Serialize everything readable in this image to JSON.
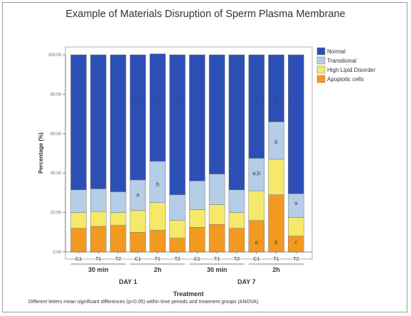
{
  "chart_data": {
    "type": "bar",
    "stacked": true,
    "title": "Example of Materials Disruption of Sperm Plasma Membrane",
    "xlabel": "Treatment",
    "ylabel": "Percentage (%)",
    "ylim": [
      0,
      100
    ],
    "yticks": [
      "0.00",
      "20.00",
      "40.00",
      "60.00",
      "80.00",
      "100.00"
    ],
    "categories": [
      "C1",
      "T1",
      "T2",
      "C1",
      "T1",
      "T2",
      "C1",
      "T1",
      "T2",
      "C1",
      "T1",
      "T2"
    ],
    "series": [
      {
        "name": "Apoptotic cells",
        "color": "#f29a20",
        "values": [
          12,
          13,
          13.5,
          10,
          11,
          7,
          12.5,
          14,
          12,
          16,
          29,
          8
        ]
      },
      {
        "name": "High Lipid Disorder",
        "color": "#f5e86a",
        "values": [
          8,
          7.5,
          6.5,
          11,
          14,
          9,
          9,
          10,
          8,
          15,
          18,
          9.5
        ]
      },
      {
        "name": "Transitional",
        "color": "#b5cde6",
        "values": [
          11.5,
          11.5,
          10.5,
          15.5,
          21,
          13,
          14.5,
          15.5,
          11.5,
          16.5,
          19,
          12
        ]
      },
      {
        "name": "Normal",
        "color": "#2b4fb5",
        "values": [
          68.5,
          68,
          69.5,
          63.5,
          54.5,
          71,
          64,
          60.5,
          68.5,
          52.5,
          34,
          70.5
        ]
      }
    ],
    "groups": [
      {
        "label": "30 min",
        "day": "DAY 1"
      },
      {
        "label": "2h",
        "day": "DAY 1"
      },
      {
        "label": "30 min",
        "day": "DAY 7"
      },
      {
        "label": "2h",
        "day": "DAY 7"
      }
    ],
    "days": [
      "DAY 1",
      "DAY 7"
    ],
    "annotations": [
      {
        "bar": 3,
        "y": 77,
        "text": "a,b"
      },
      {
        "bar": 4,
        "y": 77,
        "text": "b"
      },
      {
        "bar": 5,
        "y": 77,
        "text": "a"
      },
      {
        "bar": 3,
        "y": 29,
        "text": "a"
      },
      {
        "bar": 4,
        "y": 34.5,
        "text": "b"
      },
      {
        "bar": 9,
        "y": 77,
        "text": "a"
      },
      {
        "bar": 10,
        "y": 77,
        "text": "a"
      },
      {
        "bar": 11,
        "y": 77,
        "text": "c"
      },
      {
        "bar": 9,
        "y": 40,
        "text": "a,b"
      },
      {
        "bar": 10,
        "y": 56,
        "text": "b"
      },
      {
        "bar": 11,
        "y": 25,
        "text": "a"
      },
      {
        "bar": 9,
        "y": 5,
        "text": "a"
      },
      {
        "bar": 10,
        "y": 5,
        "text": "b"
      },
      {
        "bar": 11,
        "y": 5,
        "text": "c"
      }
    ],
    "legend_position": "top-right",
    "grid": false,
    "footnote": "Different letters mean significant differences (p<0.05) within time periods and treatment groups (ANOVA)."
  }
}
